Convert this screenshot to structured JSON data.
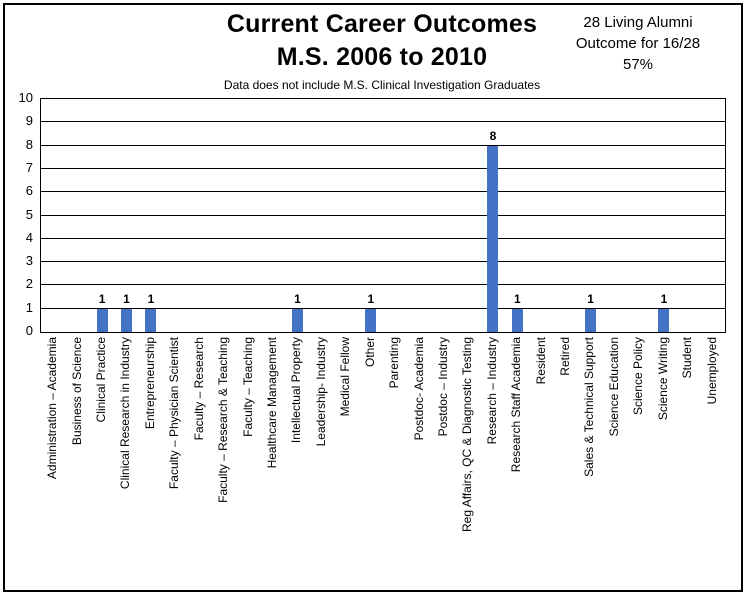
{
  "header": {
    "title_line1": "Current Career Outcomes",
    "title_line2": "M.S. 2006 to 2010",
    "subtitle": "Data does not include M.S. Clinical Investigation Graduates",
    "annotation": {
      "line1": "28 Living Alumni",
      "line2": "Outcome for 16/28",
      "line3": "57%"
    }
  },
  "chart_data": {
    "type": "bar",
    "title": "Current Career Outcomes M.S. 2006 to 2010",
    "subtitle": "Data does not include M.S. Clinical Investigation Graduates",
    "categories": [
      "Administration – Academia",
      "Business of Science",
      "Clinical Practice",
      "Clinical Research in Industry",
      "Entrepreneurship",
      "Faculty – Physician Scientist",
      "Faculty – Research",
      "Faculty – Research & Teaching",
      "Faculty – Teaching",
      "Healthcare Management",
      "Intellectual Property",
      "Leadership- Industry",
      "Medical Fellow",
      "Other",
      "Parenting",
      "Postdoc- Academia",
      "Postdoc – Industry",
      "Reg Affairs, QC & Diagnostic Testing",
      "Research – Industry",
      "Research Staff Academia",
      "Resident",
      "Retired",
      "Sales & Technical Support",
      "Science Education",
      "Science Policy",
      "Science Writing",
      "Student",
      "Unemployed"
    ],
    "values": [
      0,
      0,
      1,
      1,
      1,
      0,
      0,
      0,
      0,
      0,
      1,
      0,
      0,
      1,
      0,
      0,
      0,
      0,
      8,
      1,
      0,
      0,
      1,
      0,
      0,
      1,
      0,
      0
    ],
    "ylim": [
      0,
      10
    ],
    "ytick_step": 1,
    "yticks": [
      "0",
      "1",
      "2",
      "3",
      "4",
      "5",
      "6",
      "7",
      "8",
      "9",
      "10"
    ],
    "bar_color": "#4472C4",
    "grid": true,
    "data_labels": "shown above non-zero bars",
    "xlabel": "",
    "ylabel": ""
  }
}
